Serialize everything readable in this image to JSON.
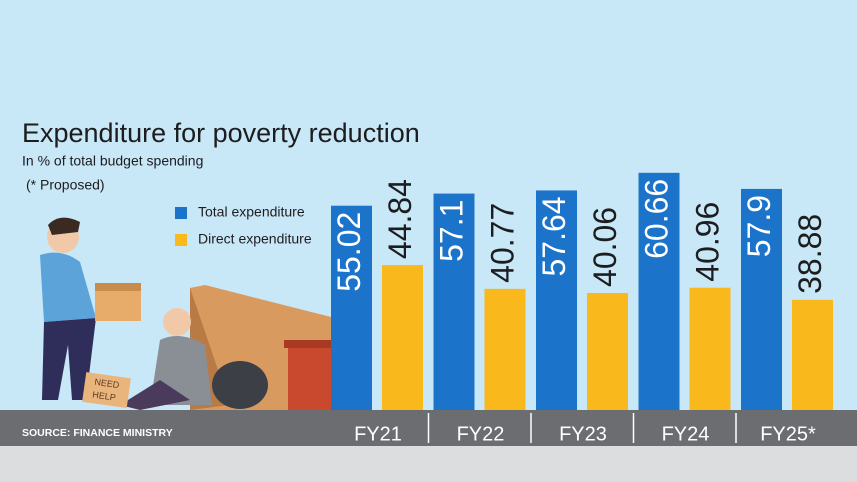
{
  "chart_data": {
    "type": "bar",
    "title": "Expenditure for poverty reduction",
    "subtitle": "In % of total budget spending",
    "note": "(* Proposed)",
    "source": "SOURCE: FINANCE MINISTRY",
    "categories": [
      "FY21",
      "FY22",
      "FY23",
      "FY24",
      "FY25*"
    ],
    "series": [
      {
        "name": "Total expenditure",
        "color": "#1b74c9",
        "values": [
          55.02,
          57.1,
          57.64,
          60.66,
          57.9
        ]
      },
      {
        "name": "Direct expenditure",
        "color": "#f9b91c",
        "values": [
          44.84,
          40.77,
          40.06,
          40.96,
          38.88
        ]
      }
    ],
    "ylim": [
      20,
      62
    ]
  }
}
